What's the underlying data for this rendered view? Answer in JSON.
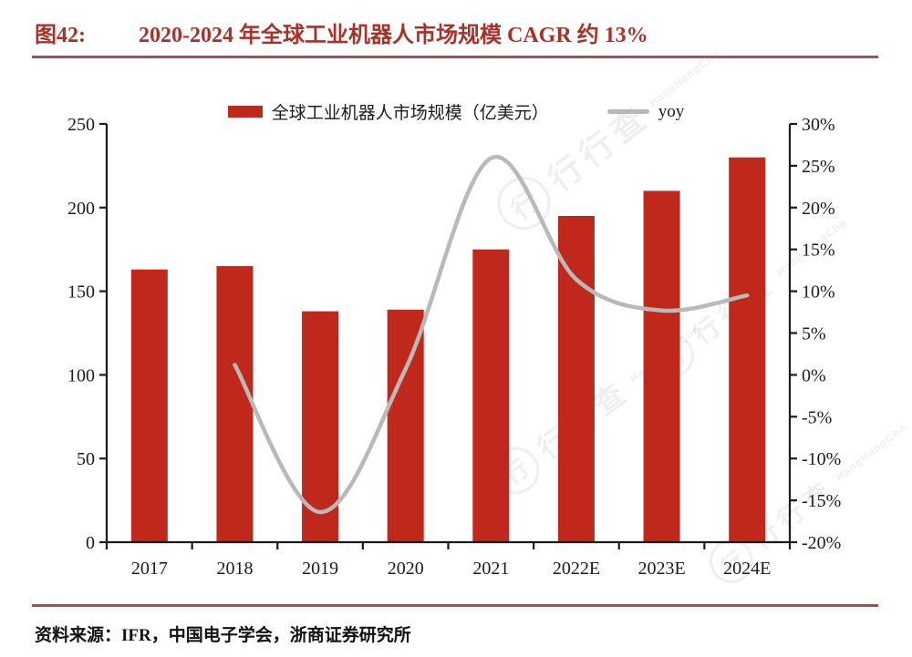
{
  "figure": {
    "label": "图42:",
    "title": "2020-2024 年全球工业机器人市场规模 CAGR 约 13%"
  },
  "legend": {
    "bar_label": "全球工业机器人市场规模（亿美元）",
    "line_label": "yoy"
  },
  "source": {
    "text": "资料来源：IFR，中国电子学会，浙商证券研究所"
  },
  "watermark": {
    "logo_text": "行",
    "cn": "行行查",
    "en": "HangHangCha"
  },
  "colors": {
    "bar": "#c1281c",
    "line": "#b9b9b9",
    "title": "#a93228",
    "rule": "#b2494d",
    "axis": "#1b1b1b",
    "text": "#1c1c1c"
  },
  "chart_data": {
    "type": "bar",
    "title": "2020-2024 年全球工业机器人市场规模 CAGR 约 13%",
    "categories": [
      "2017",
      "2018",
      "2019",
      "2020",
      "2021",
      "2022E",
      "2023E",
      "2024E"
    ],
    "series": [
      {
        "name": "全球工业机器人市场规模（亿美元）",
        "type": "bar",
        "axis": "left",
        "unit": "亿美元",
        "values": [
          163,
          165,
          138,
          139,
          175,
          195,
          210,
          230
        ]
      },
      {
        "name": "yoy",
        "type": "line",
        "axis": "right",
        "unit": "%",
        "values": [
          null,
          1.2,
          -16.4,
          0.7,
          25.9,
          11.4,
          7.7,
          9.5
        ]
      }
    ],
    "left_axis": {
      "min": 0,
      "max": 250,
      "step": 50
    },
    "right_axis": {
      "min": -20,
      "max": 30,
      "step": 5,
      "format": "percent"
    },
    "grid": false,
    "legend_position": "top"
  }
}
